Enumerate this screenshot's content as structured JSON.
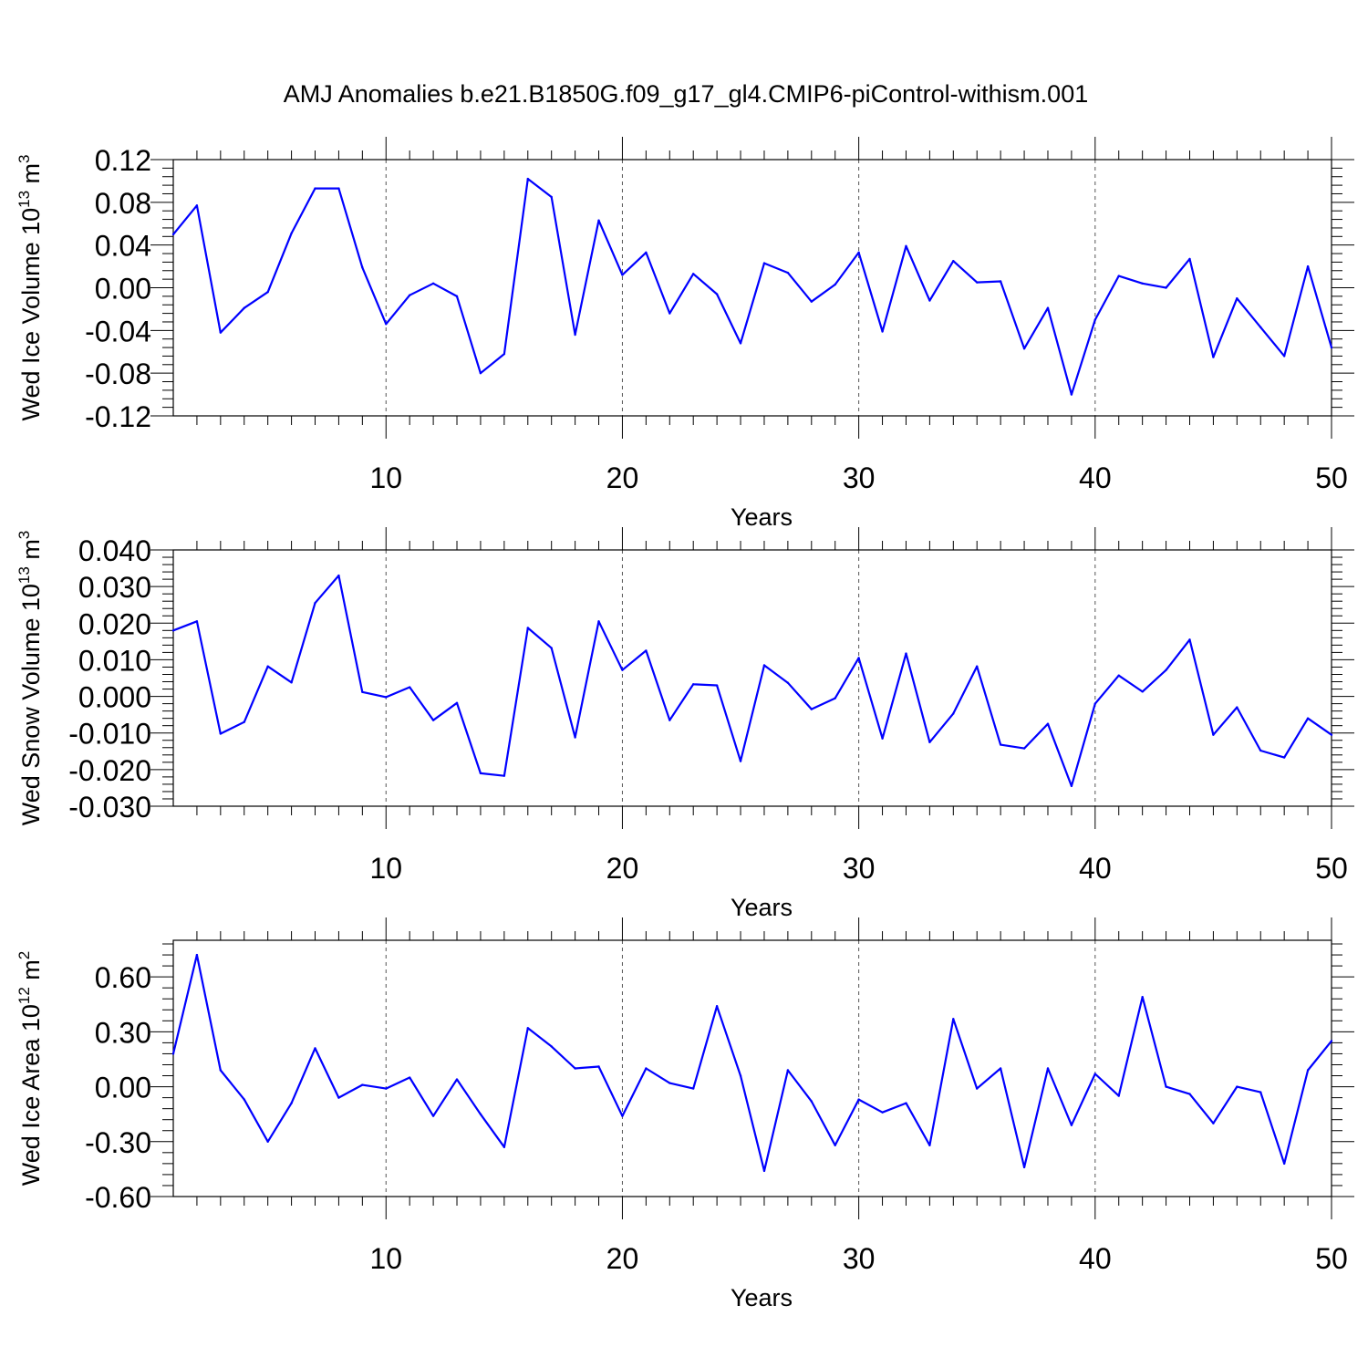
{
  "title": "AMJ Anomalies b.e21.B1850G.f09_g17_gl4.CMIP6-piControl-withism.001",
  "line_color": "#0000ff",
  "chart_data": [
    {
      "type": "line",
      "ylabel": "Wed Ice Volume 10",
      "ylabel_exp": "13",
      "ylabel_unit": " m",
      "ylabel_unit_exp": "3",
      "xlabel": "Years",
      "xlim": [
        1,
        50
      ],
      "ylim": [
        -0.12,
        0.12
      ],
      "xticks": [
        10,
        20,
        30,
        40,
        50
      ],
      "xtick_labels": [
        "10",
        "20",
        "30",
        "40",
        "50"
      ],
      "yticks": [
        -0.12,
        -0.08,
        -0.04,
        0.0,
        0.04,
        0.08,
        0.12
      ],
      "ytick_labels": [
        "-0.12",
        "-0.08",
        "-0.04",
        "0.00",
        "0.04",
        "0.08",
        "0.12"
      ],
      "x": [
        1,
        2,
        3,
        4,
        5,
        6,
        7,
        8,
        9,
        10,
        11,
        12,
        13,
        14,
        15,
        16,
        17,
        18,
        19,
        20,
        21,
        22,
        23,
        24,
        25,
        26,
        27,
        28,
        29,
        30,
        31,
        32,
        33,
        34,
        35,
        36,
        37,
        38,
        39,
        40,
        41,
        42,
        43,
        44,
        45,
        46,
        47,
        48,
        49,
        50
      ],
      "values": [
        0.05,
        0.077,
        -0.042,
        -0.019,
        -0.004,
        0.051,
        0.093,
        0.093,
        0.019,
        -0.034,
        -0.007,
        0.004,
        -0.008,
        -0.08,
        -0.062,
        0.102,
        0.085,
        -0.044,
        0.063,
        0.012,
        0.033,
        -0.024,
        0.013,
        -0.006,
        -0.052,
        0.023,
        0.014,
        -0.013,
        0.003,
        0.033,
        -0.041,
        0.039,
        -0.012,
        0.025,
        0.005,
        0.006,
        -0.057,
        -0.019,
        -0.1,
        -0.03,
        0.011,
        0.004,
        0.0,
        0.027,
        -0.065,
        -0.01,
        -0.037,
        -0.064,
        0.02,
        -0.056
      ]
    },
    {
      "type": "line",
      "ylabel": "Wed Snow Volume 10",
      "ylabel_exp": "13",
      "ylabel_unit": " m",
      "ylabel_unit_exp": "3",
      "xlabel": "Years",
      "xlim": [
        1,
        50
      ],
      "ylim": [
        -0.03,
        0.04
      ],
      "xticks": [
        10,
        20,
        30,
        40,
        50
      ],
      "xtick_labels": [
        "10",
        "20",
        "30",
        "40",
        "50"
      ],
      "yticks": [
        -0.03,
        -0.02,
        -0.01,
        0.0,
        0.01,
        0.02,
        0.03,
        0.04
      ],
      "ytick_labels": [
        "-0.030",
        "-0.020",
        "-0.010",
        "0.000",
        "0.010",
        "0.020",
        "0.030",
        "0.040"
      ],
      "x": [
        1,
        2,
        3,
        4,
        5,
        6,
        7,
        8,
        9,
        10,
        11,
        12,
        13,
        14,
        15,
        16,
        17,
        18,
        19,
        20,
        21,
        22,
        23,
        24,
        25,
        26,
        27,
        28,
        29,
        30,
        31,
        32,
        33,
        34,
        35,
        36,
        37,
        38,
        39,
        40,
        41,
        42,
        43,
        44,
        45,
        46,
        47,
        48,
        49,
        50
      ],
      "values": [
        0.018,
        0.0205,
        -0.0102,
        -0.007,
        0.0082,
        0.0038,
        0.0255,
        0.033,
        0.0012,
        -0.0002,
        0.0025,
        -0.0065,
        -0.0018,
        -0.021,
        -0.0217,
        0.0187,
        0.0132,
        -0.0112,
        0.0205,
        0.0072,
        0.0125,
        -0.0065,
        0.0033,
        0.003,
        -0.0177,
        0.0085,
        0.0037,
        -0.0035,
        -0.0005,
        0.0105,
        -0.0115,
        0.0117,
        -0.0125,
        -0.0047,
        0.0082,
        -0.0132,
        -0.0142,
        -0.0075,
        -0.0245,
        -0.002,
        0.0057,
        0.0013,
        0.0072,
        0.0155,
        -0.0105,
        -0.003,
        -0.0148,
        -0.0167,
        -0.006,
        -0.0105
      ]
    },
    {
      "type": "line",
      "ylabel": "Wed Ice Area 10",
      "ylabel_exp": "12",
      "ylabel_unit": " m",
      "ylabel_unit_exp": "2",
      "xlabel": "Years",
      "xlim": [
        1,
        50
      ],
      "ylim": [
        -0.6,
        0.8
      ],
      "xticks": [
        10,
        20,
        30,
        40,
        50
      ],
      "xtick_labels": [
        "10",
        "20",
        "30",
        "40",
        "50"
      ],
      "yticks": [
        -0.6,
        -0.3,
        0.0,
        0.3,
        0.6
      ],
      "ytick_labels": [
        "-0.60",
        "-0.30",
        "0.00",
        "0.30",
        "0.60"
      ],
      "x": [
        1,
        2,
        3,
        4,
        5,
        6,
        7,
        8,
        9,
        10,
        11,
        12,
        13,
        14,
        15,
        16,
        17,
        18,
        19,
        20,
        21,
        22,
        23,
        24,
        25,
        26,
        27,
        28,
        29,
        30,
        31,
        32,
        33,
        34,
        35,
        36,
        37,
        38,
        39,
        40,
        41,
        42,
        43,
        44,
        45,
        46,
        47,
        48,
        49,
        50
      ],
      "values": [
        0.18,
        0.72,
        0.09,
        -0.07,
        -0.3,
        -0.09,
        0.21,
        -0.06,
        0.01,
        -0.01,
        0.05,
        -0.16,
        0.04,
        -0.15,
        -0.33,
        0.32,
        0.22,
        0.1,
        0.11,
        -0.16,
        0.1,
        0.02,
        -0.01,
        0.44,
        0.06,
        -0.46,
        0.09,
        -0.08,
        -0.32,
        -0.07,
        -0.14,
        -0.09,
        -0.32,
        0.37,
        -0.01,
        0.1,
        -0.44,
        0.1,
        -0.21,
        0.07,
        -0.05,
        0.49,
        0.0,
        -0.04,
        -0.2,
        0.0,
        -0.03,
        -0.42,
        0.09,
        0.25
      ]
    }
  ]
}
